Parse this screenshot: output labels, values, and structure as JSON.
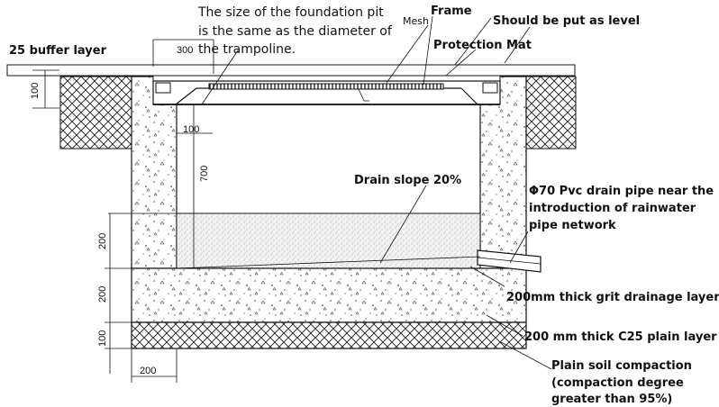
{
  "labels": {
    "pit_size_line1": "The size of the foundation pit",
    "pit_size_line2": "is the same as the diameter of",
    "pit_size_line3": "the trampoline.",
    "mesh": "Mesh",
    "frame": "Frame",
    "level": "Should be put as level",
    "buffer": "25 buffer layer",
    "protection_mat": "Protection Mat",
    "drain_slope": "Drain slope 20%",
    "pipe_line1": "Φ70 Pvc drain pipe near the",
    "pipe_line2": "introduction of rainwater",
    "pipe_line3": "pipe network",
    "grit_layer": "200mm thick grit drainage layer",
    "c25_layer": "200 mm thick C25 plain layer",
    "soil_line1": "Plain soil compaction",
    "soil_line2": "(compaction degree",
    "soil_line3": "greater than 95%)"
  },
  "dimensions": {
    "top_300": "300",
    "left_100_top": "100",
    "wall_100": "100",
    "depth_700": "700",
    "left_200_a": "200",
    "left_200_b": "200",
    "left_100_bottom": "100",
    "bottom_200": "200"
  }
}
